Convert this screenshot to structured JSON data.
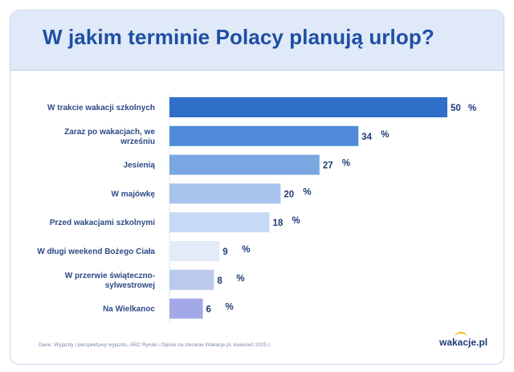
{
  "header": {
    "title": "W jakim terminie Polacy planują urlop?"
  },
  "chart_data": {
    "type": "bar",
    "orientation": "horizontal",
    "title": "W jakim terminie Polacy planują urlop?",
    "unit": "%",
    "xlim": [
      0,
      50
    ],
    "categories": [
      [
        "W trakcie wakacji szkolnych"
      ],
      [
        "Zaraz po wakacjach, we",
        "wrześniu"
      ],
      [
        "Jesienią"
      ],
      [
        "W majówkę"
      ],
      [
        "Przed wakacjami szkolnymi"
      ],
      [
        "W długi weekend Bożego Ciała"
      ],
      [
        "W przerwie świąteczno-",
        "sylwestrowej"
      ],
      [
        "Na Wielkanoc"
      ]
    ],
    "values": [
      50,
      34,
      27,
      20,
      18,
      9,
      8,
      6
    ],
    "colors": [
      "#2f6fc9",
      "#4f8bd9",
      "#7aa7e2",
      "#a6c4ee",
      "#c7daf5",
      "#e3ebf9",
      "#b9caee",
      "#a3a8e6"
    ]
  },
  "footer": {
    "source": "Dane: Wyjazdy i perspektywy wyjazdu, ARC Rynek i Opinie na zlecenie Wakacje.pl, kwiecień 2025 r.",
    "logo": "wakacje.pl"
  }
}
